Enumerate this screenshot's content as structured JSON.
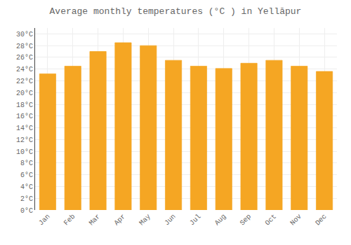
{
  "chart_data": {
    "type": "bar",
    "title": "Average monthly temperatures (°C ) in Yellāpur",
    "categories": [
      "Jan",
      "Feb",
      "Mar",
      "Apr",
      "May",
      "Jun",
      "Jul",
      "Aug",
      "Sep",
      "Oct",
      "Nov",
      "Dec"
    ],
    "values": [
      23.2,
      24.5,
      27.0,
      28.5,
      28.0,
      25.5,
      24.5,
      24.1,
      25.0,
      25.5,
      24.5,
      23.6
    ],
    "color": "#F5A623",
    "ylim": [
      0,
      31
    ],
    "yticks": [
      {
        "value": 0,
        "label": "0°C"
      },
      {
        "value": 2,
        "label": "2°C"
      },
      {
        "value": 4,
        "label": "4°C"
      },
      {
        "value": 6,
        "label": "6°C"
      },
      {
        "value": 8,
        "label": "8°C"
      },
      {
        "value": 10,
        "label": "10°C"
      },
      {
        "value": 12,
        "label": "12°C"
      },
      {
        "value": 14,
        "label": "14°C"
      },
      {
        "value": 16,
        "label": "16°C"
      },
      {
        "value": 18,
        "label": "18°C"
      },
      {
        "value": 20,
        "label": "20°C"
      },
      {
        "value": 22,
        "label": "22°C"
      },
      {
        "value": 24,
        "label": "24°C"
      },
      {
        "value": 26,
        "label": "26°C"
      },
      {
        "value": 28,
        "label": "28°C"
      },
      {
        "value": 30,
        "label": "30°C"
      }
    ],
    "grid": true
  }
}
